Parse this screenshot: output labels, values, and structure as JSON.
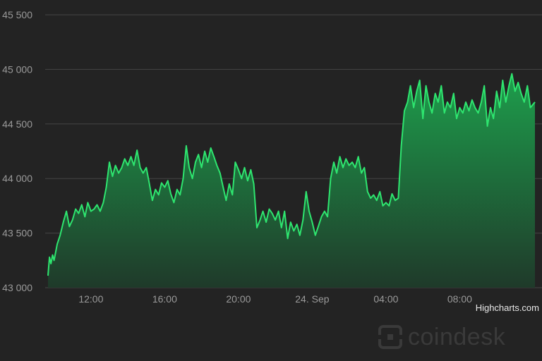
{
  "chart_data": {
    "type": "area",
    "title": "",
    "xlabel": "",
    "ylabel": "",
    "x_range": [
      "09:40",
      "10:05 (next day)"
    ],
    "x_ticks": [
      {
        "label": "12:00",
        "hour": 12
      },
      {
        "label": "16:00",
        "hour": 16
      },
      {
        "label": "20:00",
        "hour": 20
      },
      {
        "label": "24. Sep",
        "hour": 24
      },
      {
        "label": "04:00",
        "hour": 28
      },
      {
        "label": "08:00",
        "hour": 32
      }
    ],
    "y_ticks": [
      {
        "label": "43 000",
        "value": 43000
      },
      {
        "label": "43 500",
        "value": 43500
      },
      {
        "label": "44 000",
        "value": 44000
      },
      {
        "label": "44 500",
        "value": 44500
      },
      {
        "label": "45 000",
        "value": 45000
      },
      {
        "label": "45 500",
        "value": 45500
      }
    ],
    "ylim": [
      43000,
      45500
    ],
    "grid": "horizontal",
    "colors": {
      "line": "#2ee56f",
      "fill_top": "#1e9e4c",
      "fill_bottom": "#1f3a2a",
      "grid": "#444444",
      "tick_label": "#9a9a9a"
    },
    "series": [
      {
        "name": "",
        "points": [
          [
            9.67,
            43110
          ],
          [
            9.75,
            43280
          ],
          [
            9.83,
            43220
          ],
          [
            9.92,
            43300
          ],
          [
            10.0,
            43250
          ],
          [
            10.17,
            43400
          ],
          [
            10.33,
            43480
          ],
          [
            10.5,
            43600
          ],
          [
            10.67,
            43700
          ],
          [
            10.83,
            43560
          ],
          [
            11.0,
            43620
          ],
          [
            11.17,
            43720
          ],
          [
            11.33,
            43680
          ],
          [
            11.5,
            43760
          ],
          [
            11.67,
            43650
          ],
          [
            11.83,
            43780
          ],
          [
            12.0,
            43700
          ],
          [
            12.17,
            43720
          ],
          [
            12.33,
            43760
          ],
          [
            12.5,
            43700
          ],
          [
            12.67,
            43780
          ],
          [
            12.83,
            43920
          ],
          [
            13.0,
            44150
          ],
          [
            13.17,
            44020
          ],
          [
            13.33,
            44120
          ],
          [
            13.5,
            44050
          ],
          [
            13.67,
            44100
          ],
          [
            13.83,
            44180
          ],
          [
            14.0,
            44120
          ],
          [
            14.17,
            44200
          ],
          [
            14.33,
            44120
          ],
          [
            14.5,
            44260
          ],
          [
            14.67,
            44100
          ],
          [
            14.83,
            44050
          ],
          [
            15.0,
            44100
          ],
          [
            15.17,
            43950
          ],
          [
            15.33,
            43800
          ],
          [
            15.5,
            43900
          ],
          [
            15.67,
            43850
          ],
          [
            15.83,
            43960
          ],
          [
            16.0,
            43920
          ],
          [
            16.17,
            43980
          ],
          [
            16.33,
            43860
          ],
          [
            16.5,
            43780
          ],
          [
            16.67,
            43900
          ],
          [
            16.83,
            43850
          ],
          [
            17.0,
            44000
          ],
          [
            17.17,
            44300
          ],
          [
            17.33,
            44100
          ],
          [
            17.5,
            44000
          ],
          [
            17.67,
            44150
          ],
          [
            17.83,
            44220
          ],
          [
            18.0,
            44100
          ],
          [
            18.17,
            44250
          ],
          [
            18.33,
            44150
          ],
          [
            18.5,
            44280
          ],
          [
            18.67,
            44200
          ],
          [
            18.83,
            44120
          ],
          [
            19.0,
            44050
          ],
          [
            19.17,
            43920
          ],
          [
            19.33,
            43800
          ],
          [
            19.5,
            43950
          ],
          [
            19.67,
            43850
          ],
          [
            19.83,
            44150
          ],
          [
            20.0,
            44080
          ],
          [
            20.17,
            44000
          ],
          [
            20.33,
            44100
          ],
          [
            20.5,
            43980
          ],
          [
            20.67,
            44080
          ],
          [
            20.83,
            43950
          ],
          [
            21.0,
            43550
          ],
          [
            21.17,
            43620
          ],
          [
            21.33,
            43700
          ],
          [
            21.5,
            43600
          ],
          [
            21.67,
            43720
          ],
          [
            21.83,
            43680
          ],
          [
            22.0,
            43620
          ],
          [
            22.17,
            43700
          ],
          [
            22.33,
            43550
          ],
          [
            22.5,
            43700
          ],
          [
            22.67,
            43450
          ],
          [
            22.83,
            43600
          ],
          [
            23.0,
            43520
          ],
          [
            23.17,
            43580
          ],
          [
            23.33,
            43480
          ],
          [
            23.5,
            43620
          ],
          [
            23.67,
            43880
          ],
          [
            23.83,
            43700
          ],
          [
            24.0,
            43600
          ],
          [
            24.17,
            43480
          ],
          [
            24.33,
            43560
          ],
          [
            24.5,
            43650
          ],
          [
            24.67,
            43700
          ],
          [
            24.83,
            43650
          ],
          [
            25.0,
            44000
          ],
          [
            25.17,
            44150
          ],
          [
            25.33,
            44050
          ],
          [
            25.5,
            44200
          ],
          [
            25.67,
            44100
          ],
          [
            25.83,
            44180
          ],
          [
            26.0,
            44120
          ],
          [
            26.17,
            44150
          ],
          [
            26.33,
            44100
          ],
          [
            26.5,
            44200
          ],
          [
            26.67,
            44050
          ],
          [
            26.83,
            44100
          ],
          [
            27.0,
            43880
          ],
          [
            27.17,
            43820
          ],
          [
            27.33,
            43850
          ],
          [
            27.5,
            43800
          ],
          [
            27.67,
            43880
          ],
          [
            27.83,
            43750
          ],
          [
            28.0,
            43780
          ],
          [
            28.17,
            43750
          ],
          [
            28.33,
            43860
          ],
          [
            28.5,
            43800
          ],
          [
            28.67,
            43820
          ],
          [
            28.83,
            44300
          ],
          [
            29.0,
            44620
          ],
          [
            29.17,
            44700
          ],
          [
            29.33,
            44850
          ],
          [
            29.5,
            44650
          ],
          [
            29.67,
            44800
          ],
          [
            29.83,
            44900
          ],
          [
            30.0,
            44550
          ],
          [
            30.17,
            44850
          ],
          [
            30.33,
            44700
          ],
          [
            30.5,
            44600
          ],
          [
            30.67,
            44780
          ],
          [
            30.83,
            44700
          ],
          [
            31.0,
            44850
          ],
          [
            31.17,
            44600
          ],
          [
            31.33,
            44700
          ],
          [
            31.5,
            44650
          ],
          [
            31.67,
            44780
          ],
          [
            31.83,
            44550
          ],
          [
            32.0,
            44650
          ],
          [
            32.17,
            44600
          ],
          [
            32.33,
            44700
          ],
          [
            32.5,
            44620
          ],
          [
            32.67,
            44720
          ],
          [
            32.83,
            44650
          ],
          [
            33.0,
            44600
          ],
          [
            33.17,
            44700
          ],
          [
            33.33,
            44850
          ],
          [
            33.5,
            44480
          ],
          [
            33.67,
            44650
          ],
          [
            33.83,
            44550
          ],
          [
            34.0,
            44800
          ],
          [
            34.17,
            44650
          ],
          [
            34.33,
            44900
          ],
          [
            34.5,
            44700
          ],
          [
            34.67,
            44850
          ],
          [
            34.83,
            44960
          ],
          [
            35.0,
            44800
          ],
          [
            35.17,
            44880
          ],
          [
            35.33,
            44780
          ],
          [
            35.5,
            44700
          ],
          [
            35.67,
            44850
          ],
          [
            35.83,
            44650
          ],
          [
            36.08,
            44700
          ]
        ]
      }
    ]
  },
  "credits": {
    "text": "Highcharts.com"
  },
  "branding": {
    "logo_text": "coindesk",
    "logo_mark_color": "#3a3a3a"
  }
}
